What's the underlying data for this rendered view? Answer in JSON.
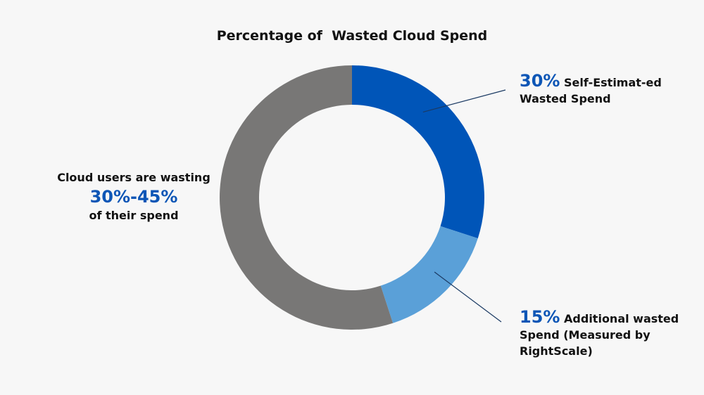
{
  "chart_data": {
    "type": "pie",
    "title": "Percentage of  Wasted Cloud Spend",
    "slices": [
      {
        "label": "Self-Estimated Wasted Spend",
        "value": 30,
        "color": "#0055b8"
      },
      {
        "label": "Additional wasted Spend (Measured by RightScale)",
        "value": 15,
        "color": "#5aa0d8"
      },
      {
        "label": "",
        "value": 55,
        "color": "#787776"
      }
    ]
  },
  "annotations": {
    "left": {
      "line1": "Cloud users are wasting",
      "value": "30%-45%",
      "line2": "of their spend"
    },
    "slice_1": {
      "pct": "30%",
      "text": "Self-Estimat-ed Wasted Spend"
    },
    "slice_2": {
      "pct": "15%",
      "text": "Additional wasted Spend (Measured by RightScale)"
    }
  },
  "colors": {
    "accent": "#0d56b6",
    "background": "#f7f7f7",
    "leader_line": "#1b3a63"
  }
}
